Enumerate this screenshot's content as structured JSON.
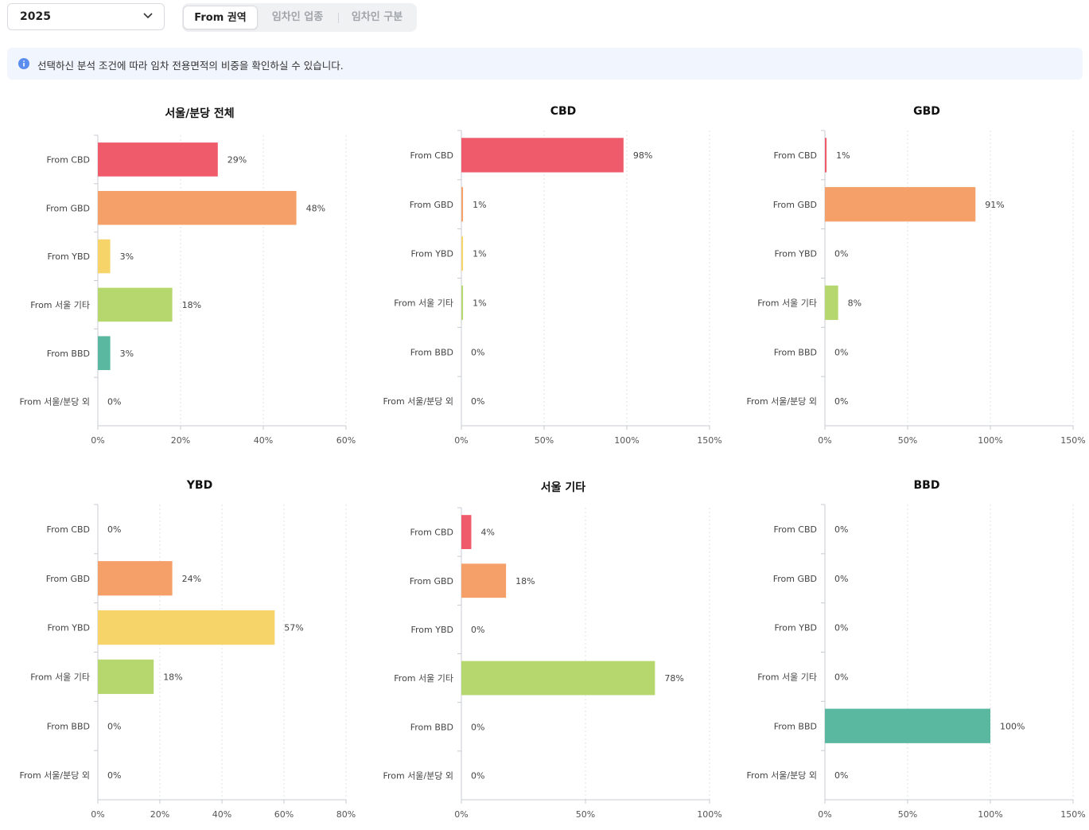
{
  "filters": {
    "year": "2025",
    "tabs": [
      {
        "label": "From 권역",
        "active": true
      },
      {
        "label": "임차인 업종",
        "active": false
      },
      {
        "label": "임차인 구분",
        "active": false
      }
    ]
  },
  "info_text": "선택하신 분석 조건에 따라 임차 전용면적의 비중을 확인하실 수 있습니다.",
  "colors": {
    "From CBD": "#ef5b6b",
    "From GBD": "#f4a068",
    "From YBD": "#f7d46a",
    "From 서울 기타": "#b6d66e",
    "From BBD": "#5ab8a0",
    "From 서울/분당 외": "#b9bec6"
  },
  "chart_data": [
    {
      "type": "bar",
      "title": "서울/분당 전체",
      "categories": [
        "From CBD",
        "From GBD",
        "From YBD",
        "From 서울 기타",
        "From BBD",
        "From 서울/분당 외"
      ],
      "values": [
        29,
        48,
        3,
        18,
        3,
        0
      ],
      "value_labels": [
        "29%",
        "48%",
        "3%",
        "18%",
        "3%",
        "0%"
      ],
      "xlim": [
        0,
        60
      ],
      "xticks": [
        "0%",
        "20%",
        "40%",
        "60%"
      ],
      "grid": true
    },
    {
      "type": "bar",
      "title": "CBD",
      "categories": [
        "From CBD",
        "From GBD",
        "From YBD",
        "From 서울 기타",
        "From BBD",
        "From 서울/분당 외"
      ],
      "values": [
        98,
        1,
        1,
        1,
        0,
        0
      ],
      "value_labels": [
        "98%",
        "1%",
        "1%",
        "1%",
        "0%",
        "0%"
      ],
      "xlim": [
        0,
        150
      ],
      "xticks": [
        "0%",
        "50%",
        "100%",
        "150%"
      ],
      "grid": true
    },
    {
      "type": "bar",
      "title": "GBD",
      "categories": [
        "From CBD",
        "From GBD",
        "From YBD",
        "From 서울 기타",
        "From BBD",
        "From 서울/분당 외"
      ],
      "values": [
        1,
        91,
        0,
        8,
        0,
        0
      ],
      "value_labels": [
        "1%",
        "91%",
        "0%",
        "8%",
        "0%",
        "0%"
      ],
      "xlim": [
        0,
        150
      ],
      "xticks": [
        "0%",
        "50%",
        "100%",
        "150%"
      ],
      "grid": true
    },
    {
      "type": "bar",
      "title": "YBD",
      "categories": [
        "From CBD",
        "From GBD",
        "From YBD",
        "From 서울 기타",
        "From BBD",
        "From 서울/분당 외"
      ],
      "values": [
        0,
        24,
        57,
        18,
        0,
        0
      ],
      "value_labels": [
        "0%",
        "24%",
        "57%",
        "18%",
        "0%",
        "0%"
      ],
      "xlim": [
        0,
        80
      ],
      "xticks": [
        "0%",
        "20%",
        "40%",
        "60%",
        "80%"
      ],
      "grid": true
    },
    {
      "type": "bar",
      "title": "서울 기타",
      "categories": [
        "From CBD",
        "From GBD",
        "From YBD",
        "From 서울 기타",
        "From BBD",
        "From 서울/분당 외"
      ],
      "values": [
        4,
        18,
        0,
        78,
        0,
        0
      ],
      "value_labels": [
        "4%",
        "18%",
        "0%",
        "78%",
        "0%",
        "0%"
      ],
      "xlim": [
        0,
        100
      ],
      "xticks": [
        "0%",
        "50%",
        "100%"
      ],
      "grid": true
    },
    {
      "type": "bar",
      "title": "BBD",
      "categories": [
        "From CBD",
        "From GBD",
        "From YBD",
        "From 서울 기타",
        "From BBD",
        "From 서울/분당 외"
      ],
      "values": [
        0,
        0,
        0,
        0,
        100,
        0
      ],
      "value_labels": [
        "0%",
        "0%",
        "0%",
        "0%",
        "100%",
        "0%"
      ],
      "xlim": [
        0,
        150
      ],
      "xticks": [
        "0%",
        "50%",
        "100%",
        "150%"
      ],
      "grid": true
    }
  ]
}
